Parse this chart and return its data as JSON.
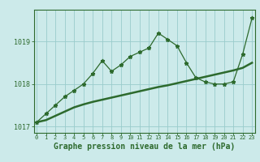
{
  "title": "Graphe pression niveau de la mer (hPa)",
  "x_hours": [
    0,
    1,
    2,
    3,
    4,
    5,
    6,
    7,
    8,
    9,
    10,
    11,
    12,
    13,
    14,
    15,
    16,
    17,
    18,
    19,
    20,
    21,
    22,
    23
  ],
  "pressure_instants": [
    1017.1,
    1017.3,
    1017.5,
    1017.7,
    1017.85,
    1018.0,
    1018.25,
    1018.55,
    1018.3,
    1018.45,
    1018.65,
    1018.75,
    1018.85,
    1019.2,
    1019.05,
    1018.9,
    1018.5,
    1018.15,
    1018.05,
    1018.0,
    1018.0,
    1018.05,
    1018.7,
    1019.55
  ],
  "pressure_smooth": [
    1017.1,
    1017.15,
    1017.25,
    1017.35,
    1017.45,
    1017.52,
    1017.58,
    1017.63,
    1017.68,
    1017.73,
    1017.78,
    1017.83,
    1017.88,
    1017.93,
    1017.97,
    1018.02,
    1018.07,
    1018.12,
    1018.17,
    1018.22,
    1018.27,
    1018.32,
    1018.38,
    1018.5
  ],
  "ylim": [
    1016.85,
    1019.75
  ],
  "yticks": [
    1017,
    1018,
    1019
  ],
  "line_color": "#2d6a2d",
  "bg_color": "#cceaea",
  "grid_color": "#99cccc",
  "marker": "*",
  "markersize": 3.5
}
